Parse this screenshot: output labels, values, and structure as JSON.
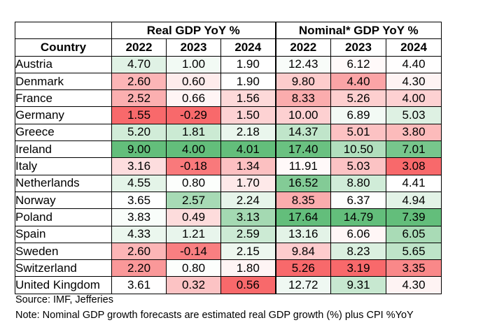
{
  "chart_data": {
    "type": "table",
    "groups": [
      {
        "label": "Real GDP YoY %",
        "years": [
          "2022",
          "2023",
          "2024"
        ]
      },
      {
        "label": "Nominal* GDP YoY %",
        "years": [
          "2022",
          "2023",
          "2024"
        ]
      }
    ],
    "country_header": "Country",
    "rows": [
      {
        "country": "Austria",
        "real": [
          "4.70",
          "1.00",
          "1.90"
        ],
        "nominal": [
          "12.43",
          "6.12",
          "4.40"
        ]
      },
      {
        "country": "Denmark",
        "real": [
          "2.60",
          "0.60",
          "1.90"
        ],
        "nominal": [
          "9.80",
          "4.40",
          "4.30"
        ]
      },
      {
        "country": "France",
        "real": [
          "2.52",
          "0.66",
          "1.56"
        ],
        "nominal": [
          "8.33",
          "5.26",
          "4.00"
        ]
      },
      {
        "country": "Germany",
        "real": [
          "1.55",
          "-0.29",
          "1.50"
        ],
        "nominal": [
          "10.00",
          "6.89",
          "5.03"
        ]
      },
      {
        "country": "Greece",
        "real": [
          "5.20",
          "1.81",
          "2.18"
        ],
        "nominal": [
          "14.37",
          "5.01",
          "3.80"
        ]
      },
      {
        "country": "Ireland",
        "real": [
          "9.00",
          "4.00",
          "4.01"
        ],
        "nominal": [
          "17.40",
          "10.50",
          "7.01"
        ]
      },
      {
        "country": "Italy",
        "real": [
          "3.16",
          "-0.18",
          "1.34"
        ],
        "nominal": [
          "11.91",
          "5.03",
          "3.08"
        ]
      },
      {
        "country": "Netherlands",
        "real": [
          "4.55",
          "0.80",
          "1.70"
        ],
        "nominal": [
          "16.52",
          "8.80",
          "4.41"
        ]
      },
      {
        "country": "Norway",
        "real": [
          "3.65",
          "2.57",
          "2.24"
        ],
        "nominal": [
          "8.35",
          "6.37",
          "4.94"
        ]
      },
      {
        "country": "Poland",
        "real": [
          "3.83",
          "0.49",
          "3.13"
        ],
        "nominal": [
          "17.64",
          "14.79",
          "7.39"
        ]
      },
      {
        "country": "Spain",
        "real": [
          "4.33",
          "1.21",
          "2.59"
        ],
        "nominal": [
          "13.16",
          "6.06",
          "6.05"
        ]
      },
      {
        "country": "Sweden",
        "real": [
          "2.60",
          "-0.14",
          "2.15"
        ],
        "nominal": [
          "9.84",
          "8.23",
          "5.65"
        ]
      },
      {
        "country": "Switzerland",
        "real": [
          "2.20",
          "0.80",
          "1.80"
        ],
        "nominal": [
          "5.26",
          "3.19",
          "3.35"
        ]
      },
      {
        "country": "United Kingdom",
        "real": [
          "3.61",
          "0.32",
          "0.56"
        ],
        "nominal": [
          "12.72",
          "9.31",
          "4.30"
        ]
      }
    ],
    "source": "Source: IMF, Jefferies",
    "note": "Note: Nominal GDP growth forecasts are estimated real GDP growth (%) plus CPI %YoY"
  },
  "colors": {
    "low": "#f8696b",
    "mid": "#ffffff",
    "high": "#63be7b"
  }
}
